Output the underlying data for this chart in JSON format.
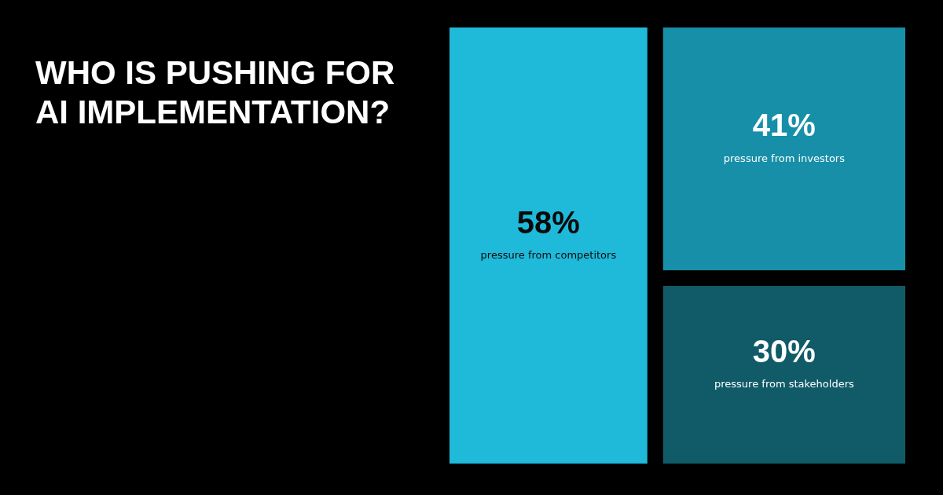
{
  "chart_data": {
    "type": "other",
    "title": "WHO IS PUSHING FOR AI IMPLEMENTATION?",
    "categories": [
      "pressure from competitors",
      "pressure from investors",
      "pressure from stakeholders"
    ],
    "values": [
      58,
      41,
      30
    ],
    "colors": [
      "#1fb9d9",
      "#178fa8",
      "#105b67"
    ],
    "value_labels": [
      "58%",
      "41%",
      "30%"
    ]
  }
}
